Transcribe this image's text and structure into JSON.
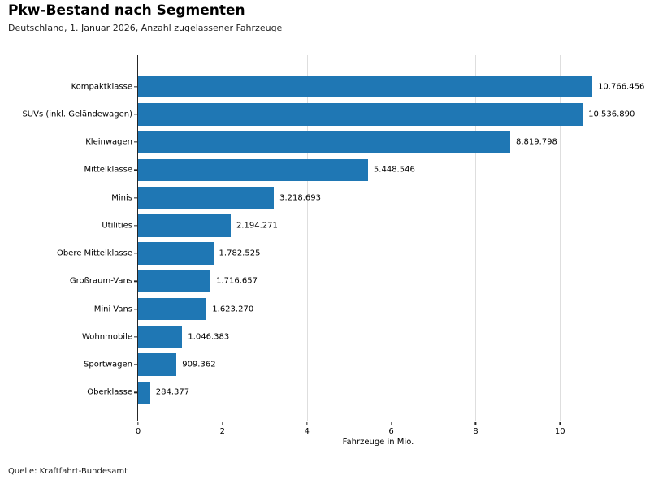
{
  "header": {
    "title": "Pkw-Bestand nach Segmenten",
    "subtitle": "Deutschland, 1. Januar 2026, Anzahl zugelassener Fahrzeuge"
  },
  "footer": {
    "source": "Quelle: Kraftfahrt-Bundesamt"
  },
  "chart_data": {
    "type": "bar",
    "orientation": "horizontal",
    "title": "Pkw-Bestand nach Segmenten",
    "subtitle": "Deutschland, 1. Januar 2026, Anzahl zugelassener Fahrzeuge",
    "xlabel": "Fahrzeuge in Mio.",
    "ylabel": "",
    "xlim": [
      0,
      11.42
    ],
    "xticks": [
      0,
      2,
      4,
      6,
      8,
      10
    ],
    "grid": true,
    "legend": false,
    "bar_color": "#1f77b4",
    "categories": [
      "Kompaktklasse",
      "SUVs (inkl. Geländewagen)",
      "Kleinwagen",
      "Mittelklasse",
      "Minis",
      "Utilities",
      "Obere Mittelklasse",
      "Großraum-Vans",
      "Mini-Vans",
      "Wohnmobile",
      "Sportwagen",
      "Oberklasse"
    ],
    "values": [
      10766456,
      10536890,
      8819798,
      5448546,
      3218693,
      2194271,
      1782525,
      1716657,
      1623270,
      1046383,
      909362,
      284377
    ],
    "value_labels": [
      "10.766.456",
      "10.536.890",
      "8.819.798",
      "5.448.546",
      "3.218.693",
      "2.194.271",
      "1.782.525",
      "1.716.657",
      "1.623.270",
      "1.046.383",
      "909.362",
      "284.377"
    ],
    "source": "Quelle: Kraftfahrt-Bundesamt"
  }
}
